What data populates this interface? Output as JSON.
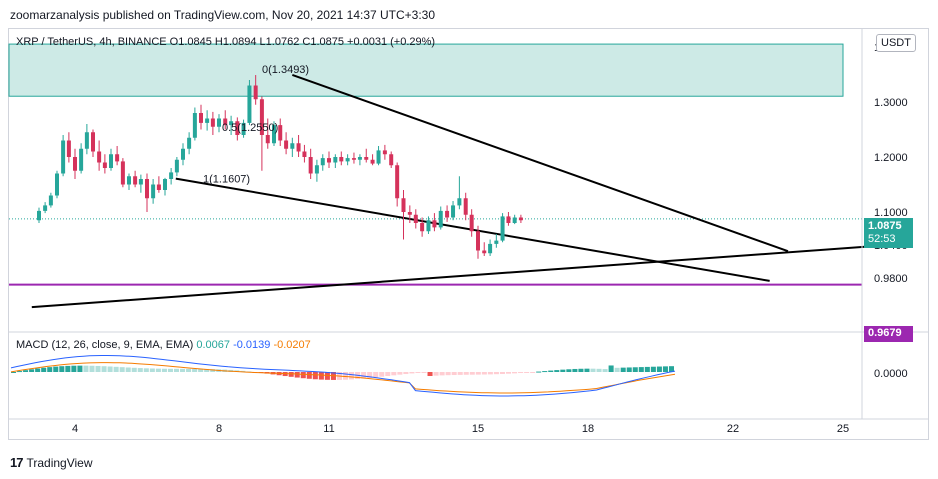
{
  "header": {
    "publisher_line": "zoomarzanalysis published on TradingView.com, Nov 20, 2021 14:37 UTC+3:30"
  },
  "legend": {
    "symbol_line": "XRP / TetherUS, 4h, BINANCE  O1.0845  H1.0894  L1.0762  C1.0875  +0.0031 (+0.29%)"
  },
  "macd_legend": {
    "label": "MACD (12, 26, close, 9, EMA, EMA)",
    "value1": "0.0067",
    "value2": "-0.0139",
    "value3": "-0.0207"
  },
  "currency_badge": "USDT",
  "last_price": {
    "price": "1.0875",
    "countdown": "52:53"
  },
  "level_label": "0.9679",
  "footer": {
    "brand": "TradingView"
  },
  "colors": {
    "up": "#26a69a",
    "down": "#d5325b",
    "zone_fill": "#cdeae6",
    "zone_border": "#26a69a",
    "level_line": "#9c27b0",
    "macd_line": "#2962ff",
    "signal_line": "#f57c00",
    "hist_pos_strong": "#26a69a",
    "hist_pos_weak": "#b2dfdb",
    "hist_neg_strong": "#ef5350",
    "hist_neg_weak": "#ffcdd2"
  },
  "chart_data": {
    "type": "candlestick",
    "symbol": "XRP / TetherUS",
    "interval": "4h",
    "exchange": "BINANCE",
    "ohlc_last": {
      "open": 1.0845,
      "high": 1.0894,
      "low": 1.0762,
      "close": 1.0875,
      "change": 0.0031,
      "change_pct": 0.29
    },
    "x_ticks": [
      "4",
      "8",
      "11",
      "15",
      "18",
      "22",
      "25"
    ],
    "y_ticks": [
      "1.4000",
      "1.3000",
      "1.2000",
      "1.1000",
      "1.0400",
      "0.9800"
    ],
    "macd_y_ticks": [
      "0.0000"
    ],
    "ylim": [
      0.94,
      1.45
    ],
    "fib_labels": [
      {
        "text": "0(1.3493)",
        "value": 1.3493
      },
      {
        "text": "0.5(1.2550)",
        "value": 1.255
      },
      {
        "text": "1(1.1607)",
        "value": 1.1607
      }
    ],
    "supply_zone": {
      "top": 1.4053,
      "bottom": 1.3105
    },
    "horizontal_level": 0.9679,
    "trend_lines": [
      {
        "name": "channel-upper",
        "start": [
          10.0,
          1.3493
        ],
        "end": [
          23.5,
          1.0288
        ]
      },
      {
        "name": "channel-lower",
        "start": [
          6.8,
          1.1607
        ],
        "end": [
          23.0,
          0.9747
        ]
      },
      {
        "name": "support-rising",
        "start": [
          2.8,
          0.9271
        ],
        "end": [
          25.7,
          1.0373
        ]
      }
    ],
    "candles": [
      [
        3.0,
        1.085,
        1.108,
        1.08,
        1.102
      ],
      [
        3.17,
        1.102,
        1.118,
        1.098,
        1.112
      ],
      [
        3.33,
        1.112,
        1.135,
        1.108,
        1.13
      ],
      [
        3.5,
        1.13,
        1.175,
        1.125,
        1.17
      ],
      [
        3.67,
        1.17,
        1.24,
        1.165,
        1.23
      ],
      [
        3.83,
        1.23,
        1.245,
        1.19,
        1.2
      ],
      [
        4.0,
        1.2,
        1.215,
        1.16,
        1.175
      ],
      [
        4.17,
        1.175,
        1.225,
        1.17,
        1.215
      ],
      [
        4.33,
        1.215,
        1.26,
        1.205,
        1.245
      ],
      [
        4.5,
        1.245,
        1.25,
        1.2,
        1.21
      ],
      [
        4.67,
        1.21,
        1.23,
        1.175,
        1.19
      ],
      [
        4.83,
        1.19,
        1.205,
        1.17,
        1.18
      ],
      [
        5.0,
        1.18,
        1.215,
        1.175,
        1.205
      ],
      [
        5.17,
        1.205,
        1.22,
        1.185,
        1.192
      ],
      [
        5.33,
        1.192,
        1.198,
        1.145,
        1.15
      ],
      [
        5.5,
        1.15,
        1.17,
        1.14,
        1.165
      ],
      [
        5.67,
        1.165,
        1.175,
        1.145,
        1.15
      ],
      [
        5.83,
        1.15,
        1.168,
        1.135,
        1.16
      ],
      [
        6.0,
        1.16,
        1.17,
        1.1,
        1.125
      ],
      [
        6.17,
        1.125,
        1.16,
        1.115,
        1.15
      ],
      [
        6.33,
        1.15,
        1.165,
        1.135,
        1.14
      ],
      [
        6.5,
        1.14,
        1.162,
        1.13,
        1.16
      ],
      [
        6.67,
        1.16,
        1.18,
        1.15,
        1.172
      ],
      [
        6.83,
        1.172,
        1.2,
        1.165,
        1.195
      ],
      [
        7.0,
        1.195,
        1.225,
        1.185,
        1.215
      ],
      [
        7.17,
        1.215,
        1.245,
        1.205,
        1.235
      ],
      [
        7.33,
        1.235,
        1.29,
        1.23,
        1.28
      ],
      [
        7.5,
        1.28,
        1.295,
        1.25,
        1.262
      ],
      [
        7.67,
        1.262,
        1.285,
        1.248,
        1.27
      ],
      [
        7.83,
        1.27,
        1.282,
        1.24,
        1.255
      ],
      [
        8.0,
        1.255,
        1.278,
        1.245,
        1.27
      ],
      [
        8.17,
        1.27,
        1.285,
        1.25,
        1.258
      ],
      [
        8.33,
        1.258,
        1.275,
        1.24,
        1.265
      ],
      [
        8.5,
        1.265,
        1.272,
        1.23,
        1.24
      ],
      [
        8.67,
        1.24,
        1.268,
        1.235,
        1.262
      ],
      [
        8.83,
        1.262,
        1.34,
        1.258,
        1.33
      ],
      [
        9.0,
        1.33,
        1.349,
        1.295,
        1.305
      ],
      [
        9.17,
        1.305,
        1.31,
        1.175,
        1.24
      ],
      [
        9.33,
        1.24,
        1.27,
        1.215,
        1.225
      ],
      [
        9.5,
        1.225,
        1.265,
        1.22,
        1.258
      ],
      [
        9.67,
        1.258,
        1.27,
        1.22,
        1.23
      ],
      [
        9.83,
        1.23,
        1.245,
        1.205,
        1.215
      ],
      [
        10.0,
        1.215,
        1.235,
        1.2,
        1.225
      ],
      [
        10.17,
        1.225,
        1.24,
        1.2,
        1.21
      ],
      [
        10.33,
        1.21,
        1.222,
        1.19,
        1.2
      ],
      [
        10.5,
        1.2,
        1.215,
        1.16,
        1.17
      ],
      [
        10.67,
        1.17,
        1.195,
        1.155,
        1.185
      ],
      [
        10.83,
        1.185,
        1.205,
        1.175,
        1.198
      ],
      [
        11.0,
        1.198,
        1.21,
        1.18,
        1.19
      ],
      [
        11.17,
        1.19,
        1.205,
        1.18,
        1.2
      ],
      [
        11.33,
        1.2,
        1.21,
        1.185,
        1.192
      ],
      [
        11.5,
        1.192,
        1.205,
        1.185,
        1.198
      ],
      [
        11.67,
        1.198,
        1.208,
        1.188,
        1.195
      ],
      [
        11.83,
        1.195,
        1.205,
        1.185,
        1.2
      ],
      [
        12.0,
        1.2,
        1.215,
        1.19,
        1.195
      ],
      [
        12.17,
        1.195,
        1.205,
        1.185,
        1.188
      ],
      [
        12.33,
        1.188,
        1.22,
        1.185,
        1.212
      ],
      [
        12.5,
        1.212,
        1.222,
        1.195,
        1.205
      ],
      [
        12.67,
        1.205,
        1.21,
        1.18,
        1.185
      ],
      [
        12.83,
        1.185,
        1.19,
        1.11,
        1.125
      ],
      [
        13.0,
        1.125,
        1.14,
        1.05,
        1.1
      ],
      [
        13.17,
        1.1,
        1.112,
        1.08,
        1.095
      ],
      [
        13.33,
        1.095,
        1.105,
        1.07,
        1.08
      ],
      [
        13.5,
        1.08,
        1.09,
        1.055,
        1.065
      ],
      [
        13.67,
        1.065,
        1.092,
        1.06,
        1.085
      ],
      [
        13.83,
        1.085,
        1.098,
        1.065,
        1.072
      ],
      [
        14.0,
        1.072,
        1.11,
        1.068,
        1.102
      ],
      [
        14.17,
        1.102,
        1.112,
        1.082,
        1.09
      ],
      [
        14.33,
        1.09,
        1.12,
        1.085,
        1.112
      ],
      [
        14.5,
        1.112,
        1.165,
        1.105,
        1.125
      ],
      [
        14.67,
        1.125,
        1.135,
        1.085,
        1.095
      ],
      [
        14.83,
        1.095,
        1.105,
        1.055,
        1.065
      ],
      [
        15.0,
        1.065,
        1.075,
        1.015,
        1.03
      ],
      [
        15.17,
        1.03,
        1.045,
        1.02,
        1.025
      ],
      [
        15.33,
        1.025,
        1.05,
        1.02,
        1.042
      ],
      [
        15.5,
        1.042,
        1.06,
        1.035,
        1.048
      ],
      [
        15.67,
        1.048,
        1.098,
        1.045,
        1.092
      ],
      [
        15.83,
        1.092,
        1.1,
        1.075,
        1.08
      ],
      [
        16.0,
        1.08,
        1.095,
        1.078,
        1.09
      ],
      [
        16.17,
        1.09,
        1.095,
        1.08,
        1.085
      ]
    ],
    "macd_histogram_count": 110,
    "macd": {
      "macd_last": 0.0067,
      "signal_last": -0.0139,
      "histogram_last": -0.0207
    }
  }
}
